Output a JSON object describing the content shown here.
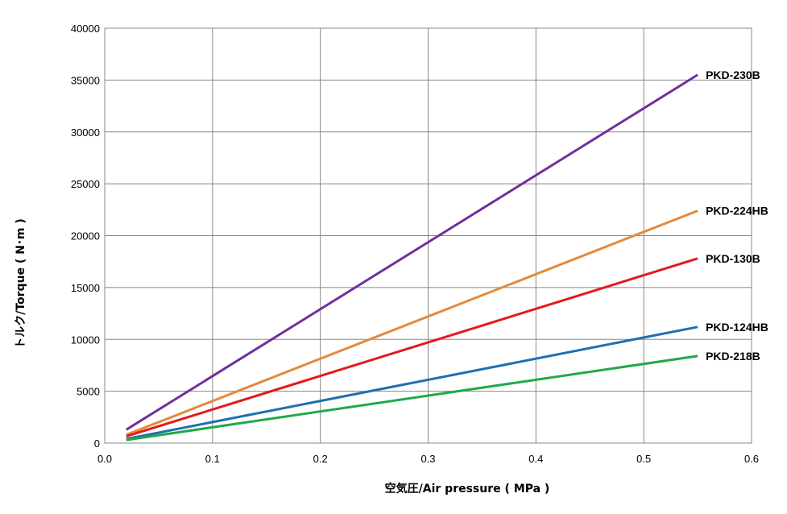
{
  "chart_data": {
    "type": "line",
    "xlabel": "空気圧/Air pressure ( MPa )",
    "ylabel": "トルク/Torque ( N･m )",
    "xlim": [
      0,
      0.6
    ],
    "ylim": [
      0,
      40000
    ],
    "xticks": [
      "0.0",
      "0.1",
      "0.2",
      "0.3",
      "0.4",
      "0.5",
      "0.6"
    ],
    "yticks": [
      "0",
      "5000",
      "10000",
      "15000",
      "20000",
      "25000",
      "30000",
      "35000",
      "40000"
    ],
    "grid": true,
    "legend": "labels at line ends (right)",
    "series": [
      {
        "name": "PKD-230B",
        "color": "#7030a0",
        "x": [
          0.02,
          0.55
        ],
        "y": [
          1300,
          35500
        ]
      },
      {
        "name": "PKD-224HB",
        "color": "#e38a3c",
        "x": [
          0.02,
          0.55
        ],
        "y": [
          800,
          22400
        ]
      },
      {
        "name": "PKD-130B",
        "color": "#e31a1c",
        "x": [
          0.02,
          0.55
        ],
        "y": [
          650,
          17800
        ]
      },
      {
        "name": "PKD-124HB",
        "color": "#1f6fb2",
        "x": [
          0.02,
          0.55
        ],
        "y": [
          400,
          11200
        ]
      },
      {
        "name": "PKD-218B",
        "color": "#22a84a",
        "x": [
          0.02,
          0.55
        ],
        "y": [
          300,
          8400
        ]
      }
    ]
  }
}
